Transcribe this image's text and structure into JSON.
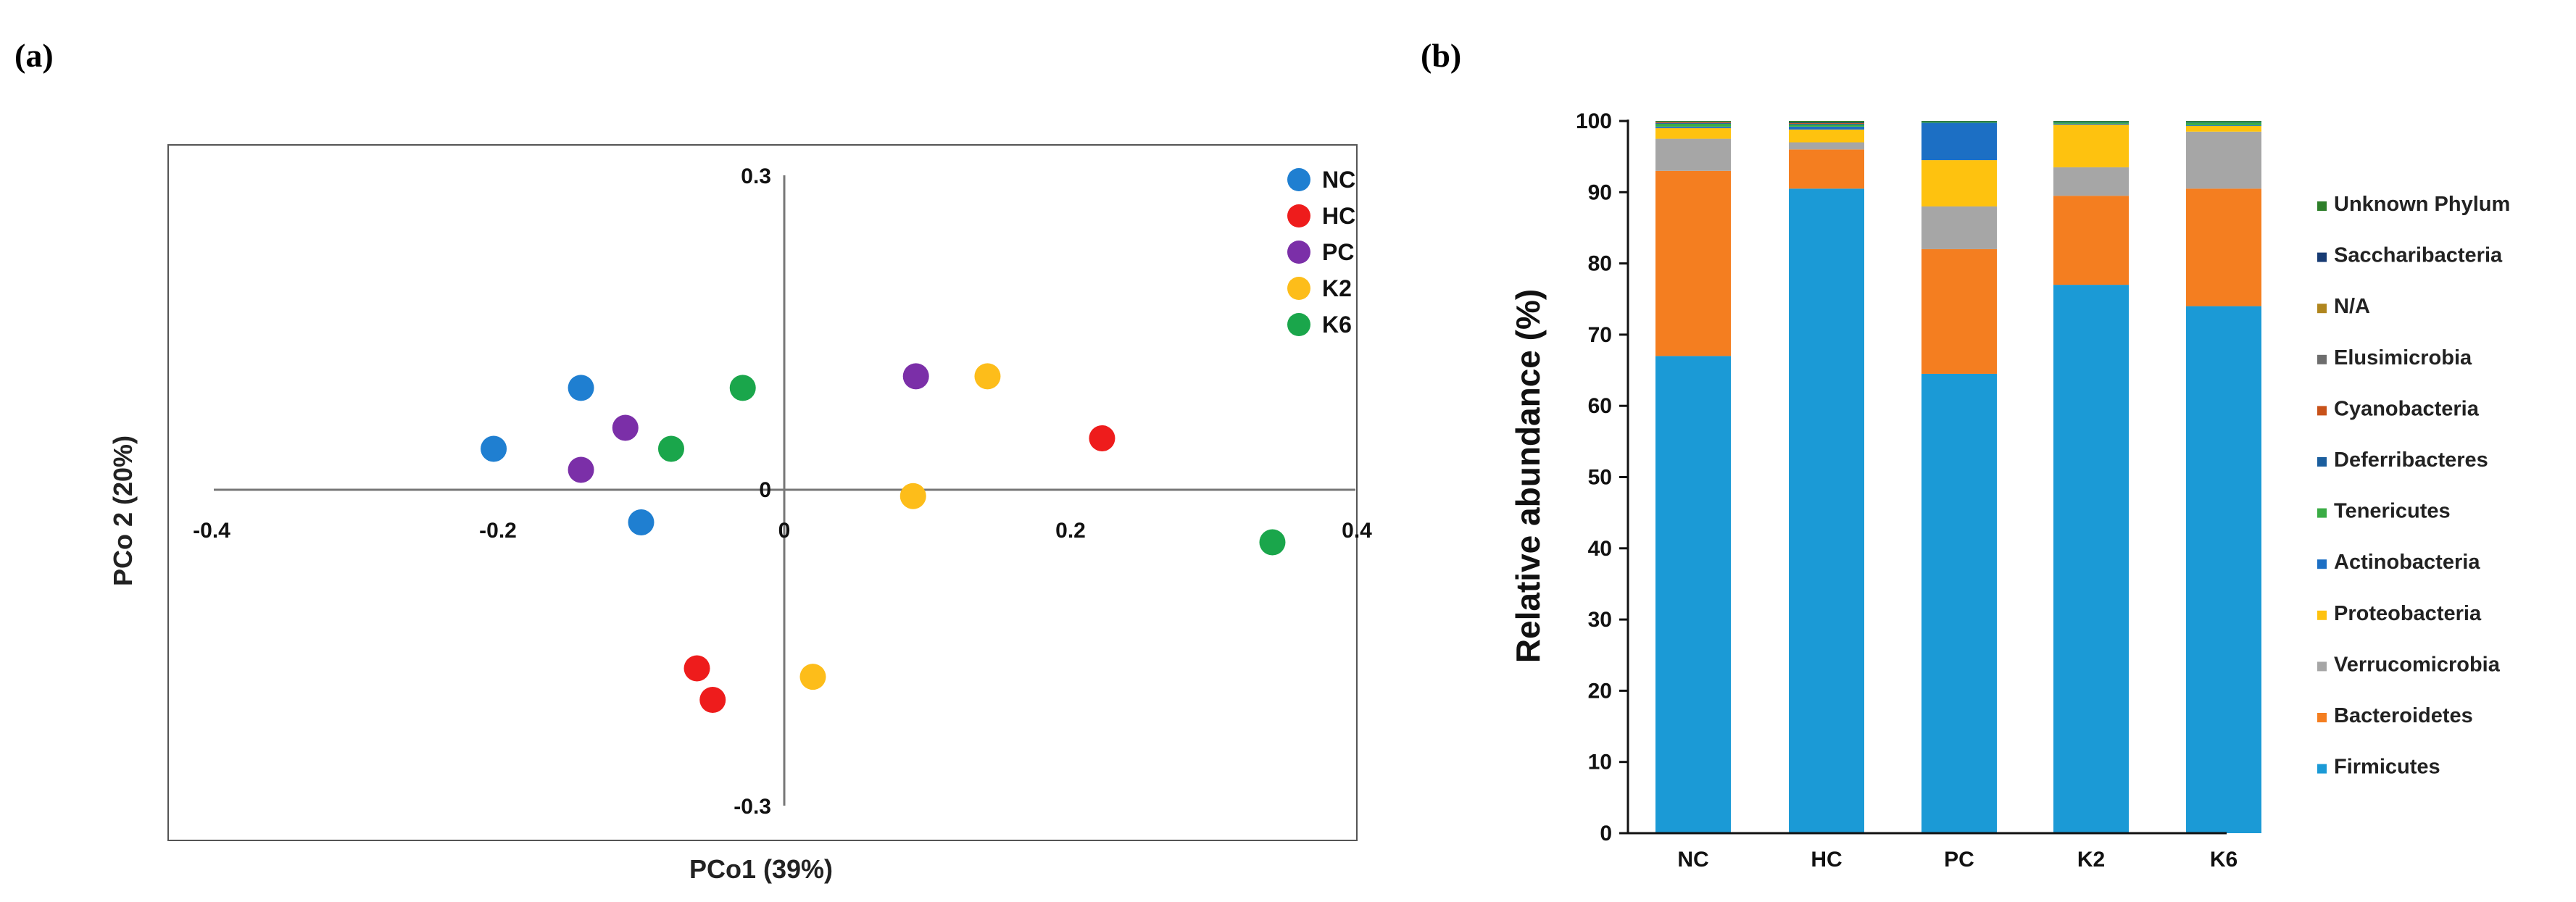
{
  "chart_data": [
    {
      "panel": "(a)",
      "type": "scatter",
      "xlabel": "PCo1 (39%)",
      "ylabel": "PCo 2 (20%)",
      "xlim": [
        -0.4,
        0.4
      ],
      "ylim": [
        -0.3,
        0.3
      ],
      "x_ticks": [
        -0.4,
        -0.2,
        0,
        0.2,
        0.4
      ],
      "x_tick_labels": [
        "-0.4",
        "-0.2",
        "0",
        "0.2",
        "0.4"
      ],
      "y_ticks": [
        0.3,
        0,
        -0.3
      ],
      "y_tick_labels": [
        "0.3",
        "0",
        "-0.3"
      ],
      "legend_position": "top-right",
      "series": [
        {
          "name": "NC",
          "color": "#1f7fd1",
          "points": [
            [
              -0.142,
              0.097
            ],
            [
              -0.203,
              0.039
            ],
            [
              -0.1,
              -0.031
            ]
          ]
        },
        {
          "name": "HC",
          "color": "#ee1c1c",
          "points": [
            [
              0.222,
              0.049
            ],
            [
              -0.061,
              -0.17
            ],
            [
              -0.05,
              -0.2
            ]
          ]
        },
        {
          "name": "PC",
          "color": "#7b2fa8",
          "points": [
            [
              -0.111,
              0.059
            ],
            [
              -0.142,
              0.019
            ],
            [
              0.092,
              0.108
            ]
          ]
        },
        {
          "name": "K2",
          "color": "#fdbd1a",
          "points": [
            [
              0.142,
              0.108
            ],
            [
              0.09,
              -0.006
            ],
            [
              0.02,
              -0.178
            ]
          ]
        },
        {
          "name": "K6",
          "color": "#1aa64b",
          "points": [
            [
              -0.029,
              0.097
            ],
            [
              -0.079,
              0.039
            ],
            [
              0.341,
              -0.05
            ]
          ]
        }
      ]
    },
    {
      "panel": "(b)",
      "type": "bar",
      "stacked": true,
      "ylabel": "Relative abundance (%)",
      "ylim": [
        0,
        100
      ],
      "y_ticks": [
        0,
        10,
        20,
        30,
        40,
        50,
        60,
        70,
        80,
        90,
        100
      ],
      "y_tick_labels": [
        "0",
        "10",
        "20",
        "30",
        "40",
        "50",
        "60",
        "70",
        "80",
        "90",
        "100"
      ],
      "categories": [
        "NC",
        "HC",
        "PC",
        "K2",
        "K6"
      ],
      "legend_position": "right",
      "legend_order": [
        "Unknown Phylum",
        "Saccharibacteria",
        "N/A",
        "Elusimicrobia",
        "Cyanobacteria",
        "Deferribacteres",
        "Tenericutes",
        "Actinobacteria",
        "Proteobacteria",
        "Verrucomicrobia",
        "Bacteroidetes",
        "Firmicutes"
      ],
      "series": [
        {
          "name": "Firmicutes",
          "color": "#1b9ad6",
          "values": [
            67.0,
            90.5,
            64.5,
            77.0,
            74.0
          ]
        },
        {
          "name": "Bacteroidetes",
          "color": "#f47e20",
          "values": [
            26.0,
            5.5,
            17.5,
            12.5,
            16.5
          ]
        },
        {
          "name": "Verrucomicrobia",
          "color": "#a6a6a6",
          "values": [
            4.5,
            1.0,
            6.0,
            4.0,
            8.0
          ]
        },
        {
          "name": "Proteobacteria",
          "color": "#fec20f",
          "values": [
            1.5,
            1.8,
            6.5,
            6.0,
            0.8
          ]
        },
        {
          "name": "Actinobacteria",
          "color": "#1c6fc4",
          "values": [
            0.2,
            0.4,
            5.2,
            0.1,
            0.1
          ]
        },
        {
          "name": "Tenericutes",
          "color": "#3aac45",
          "values": [
            0.4,
            0.3,
            0.1,
            0.2,
            0.4
          ]
        },
        {
          "name": "Deferribacteres",
          "color": "#1b5e9e",
          "values": [
            0.1,
            0.1,
            0.1,
            0.1,
            0.1
          ]
        },
        {
          "name": "Cyanobacteria",
          "color": "#c8521a",
          "values": [
            0.1,
            0.1,
            0.0,
            0.0,
            0.0
          ]
        },
        {
          "name": "Elusimicrobia",
          "color": "#6d6d6d",
          "values": [
            0.1,
            0.0,
            0.0,
            0.0,
            0.0
          ]
        },
        {
          "name": "N/A",
          "color": "#b0861e",
          "values": [
            0.0,
            0.0,
            0.0,
            0.0,
            0.0
          ]
        },
        {
          "name": "Saccharibacteria",
          "color": "#173b73",
          "values": [
            0.0,
            0.1,
            0.0,
            0.0,
            0.0
          ]
        },
        {
          "name": "Unknown Phylum",
          "color": "#2e7f2a",
          "values": [
            0.1,
            0.2,
            0.1,
            0.1,
            0.1
          ]
        }
      ]
    }
  ]
}
